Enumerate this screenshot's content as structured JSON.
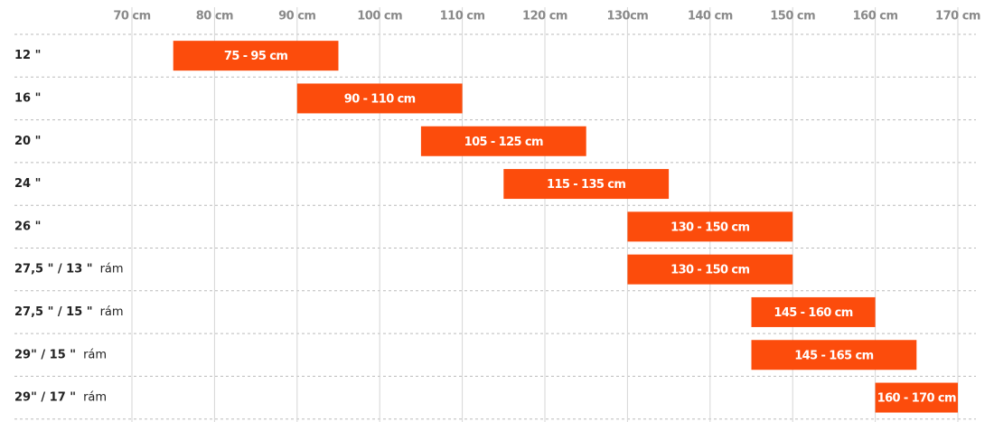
{
  "chart_data": {
    "type": "range-bar",
    "categories": [
      "12 \"",
      "16 \"",
      "20 \"",
      "24 \"",
      "26 \"",
      "27,5 \" / 13 \"",
      "27,5 \" / 15 \"",
      "29\" / 15 \"",
      "29\" / 17 \""
    ],
    "category_suffix": [
      null,
      null,
      null,
      null,
      null,
      "rám",
      "rám",
      "rám",
      "rám"
    ],
    "start": [
      75,
      90,
      105,
      115,
      130,
      130,
      145,
      145,
      160
    ],
    "end": [
      95,
      110,
      125,
      135,
      150,
      150,
      160,
      165,
      170
    ],
    "value_labels": [
      "75 - 95 cm",
      "90 - 110 cm",
      "105 - 125 cm",
      "115 - 135 cm",
      "130 - 150 cm",
      "130 - 150 cm",
      "145 -  160 cm",
      "145 - 165 cm",
      "160 - 170 cm"
    ],
    "color": "#fc4c0c",
    "xlim": [
      70,
      170
    ],
    "xticks": [
      {
        "value": 70,
        "label": "70 cm"
      },
      {
        "value": 80,
        "label": "80 cm"
      },
      {
        "value": 90,
        "label": "90 cm"
      },
      {
        "value": 100,
        "label": "100 cm"
      },
      {
        "value": 110,
        "label": "110 cm"
      },
      {
        "value": 120,
        "label": "120 cm"
      },
      {
        "value": 130,
        "label": "130cm"
      },
      {
        "value": 140,
        "label": "140 cm"
      },
      {
        "value": 150,
        "label": "150 cm"
      },
      {
        "value": 160,
        "label": "160 cm"
      },
      {
        "value": 170,
        "label": "170 cm"
      }
    ],
    "grid": true
  }
}
